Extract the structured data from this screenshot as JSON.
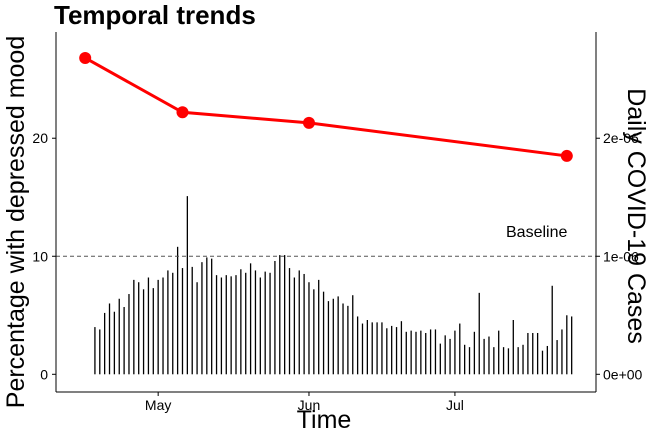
{
  "chart_data": {
    "type": "line",
    "title": "Temporal trends",
    "xlabel": "Time",
    "ylabel": "Percentage with depressed mood",
    "ylabel_right": "Daily COVID-19 Cases",
    "annotation": "Baseline",
    "x_ticks": [
      "May",
      "Jun",
      "Jul"
    ],
    "y_ticks_left": [
      "0",
      "10",
      "20"
    ],
    "y_ticks_right": [
      "0e+00",
      "1e-06",
      "2e-06"
    ],
    "ylim": [
      -1.5,
      29
    ],
    "ylim_right": [
      -1.5e-07,
      2.9e-06
    ],
    "baseline_value": 10,
    "line_color": "#ff0000",
    "bar_color": "#000000",
    "grid": false,
    "series": [
      {
        "axis": "left",
        "x": [
          "2020-04-16",
          "2020-05-06",
          "2020-06-01",
          "2020-07-24"
        ],
        "values": [
          26.8,
          22.2,
          21.3,
          18.5
        ]
      },
      {
        "axis": "right",
        "x": [
          "2020-04-18",
          "2020-04-19",
          "2020-04-20",
          "2020-04-21",
          "2020-04-22",
          "2020-04-23",
          "2020-04-24",
          "2020-04-25",
          "2020-04-26",
          "2020-04-27",
          "2020-04-28",
          "2020-04-29",
          "2020-04-30",
          "2020-05-01",
          "2020-05-02",
          "2020-05-03",
          "2020-05-04",
          "2020-05-05",
          "2020-05-06",
          "2020-05-07",
          "2020-05-08",
          "2020-05-09",
          "2020-05-10",
          "2020-05-11",
          "2020-05-12",
          "2020-05-13",
          "2020-05-14",
          "2020-05-15",
          "2020-05-16",
          "2020-05-17",
          "2020-05-18",
          "2020-05-19",
          "2020-05-20",
          "2020-05-21",
          "2020-05-22",
          "2020-05-23",
          "2020-05-24",
          "2020-05-25",
          "2020-05-26",
          "2020-05-27",
          "2020-05-28",
          "2020-05-29",
          "2020-05-30",
          "2020-05-31",
          "2020-06-01",
          "2020-06-02",
          "2020-06-03",
          "2020-06-04",
          "2020-06-05",
          "2020-06-06",
          "2020-06-07",
          "2020-06-08",
          "2020-06-09",
          "2020-06-10",
          "2020-06-11",
          "2020-06-12",
          "2020-06-13",
          "2020-06-14",
          "2020-06-15",
          "2020-06-16",
          "2020-06-17",
          "2020-06-18",
          "2020-06-19",
          "2020-06-20",
          "2020-06-21",
          "2020-06-22",
          "2020-06-23",
          "2020-06-24",
          "2020-06-25",
          "2020-06-26",
          "2020-06-27",
          "2020-06-28",
          "2020-06-29",
          "2020-06-30",
          "2020-07-01",
          "2020-07-02",
          "2020-07-03",
          "2020-07-04",
          "2020-07-05",
          "2020-07-06",
          "2020-07-07",
          "2020-07-08",
          "2020-07-09",
          "2020-07-10",
          "2020-07-11",
          "2020-07-12",
          "2020-07-13",
          "2020-07-14",
          "2020-07-15",
          "2020-07-16",
          "2020-07-17",
          "2020-07-18",
          "2020-07-19",
          "2020-07-20",
          "2020-07-21",
          "2020-07-22",
          "2020-07-23",
          "2020-07-24",
          "2020-07-25"
        ],
        "values": [
          4e-07,
          3.8e-07,
          5.2e-07,
          6e-07,
          5.3e-07,
          6.4e-07,
          5.7e-07,
          6.8e-07,
          8e-07,
          7.8e-07,
          7.2e-07,
          8.2e-07,
          7.3e-07,
          8e-07,
          8.2e-07,
          8.8e-07,
          8.6e-07,
          1.08e-06,
          9e-07,
          1.51e-06,
          9.1e-07,
          7.8e-07,
          9.5e-07,
          9.9e-07,
          9.8e-07,
          8.4e-07,
          8.2e-07,
          8.4e-07,
          8.3e-07,
          8.4e-07,
          8.9e-07,
          8.6e-07,
          9.4e-07,
          8.8e-07,
          8.2e-07,
          8.7e-07,
          8.6e-07,
          9.6e-07,
          1.01e-06,
          1.01e-06,
          9e-07,
          8.2e-07,
          8.8e-07,
          8.5e-07,
          7.8e-07,
          7.2e-07,
          8e-07,
          7e-07,
          6.2e-07,
          6.4e-07,
          6.6e-07,
          6e-07,
          5.8e-07,
          6.7e-07,
          4.9e-07,
          4.3e-07,
          4.6e-07,
          4.4e-07,
          4.4e-07,
          4.4e-07,
          3.9e-07,
          4.1e-07,
          4e-07,
          4.5e-07,
          3.6e-07,
          3.7e-07,
          3.6e-07,
          3.7e-07,
          3.5e-07,
          3.8e-07,
          3.8e-07,
          2.6e-07,
          3.3e-07,
          3e-07,
          3.7e-07,
          4.3e-07,
          2.5e-07,
          2.3e-07,
          3.6e-07,
          6.9e-07,
          3e-07,
          3.2e-07,
          2.3e-07,
          3.7e-07,
          2.3e-07,
          2.2e-07,
          4.6e-07,
          2.3e-07,
          2.5e-07,
          3.5e-07,
          3.5e-07,
          3.5e-07,
          2e-07,
          2.4e-07,
          7.5e-07,
          2.9e-07,
          3.8e-07,
          5e-07,
          4.9e-07
        ]
      }
    ]
  }
}
